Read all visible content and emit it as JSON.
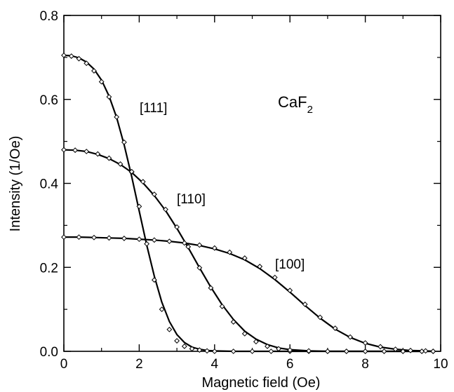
{
  "chart_data": {
    "type": "scatter",
    "title": "",
    "xlabel": "Magnetic field (Oe)",
    "ylabel": "Intensity (1/Oe)",
    "xlim": [
      0,
      10
    ],
    "ylim": [
      0,
      0.8
    ],
    "xticks": [
      0,
      2,
      4,
      6,
      8,
      10
    ],
    "yticks": [
      0.0,
      0.2,
      0.4,
      0.6,
      0.8
    ],
    "xtick_labels": [
      "0",
      "2",
      "4",
      "6",
      "8",
      "10"
    ],
    "ytick_labels": [
      "0.0",
      "0.2",
      "0.4",
      "0.6",
      "0.8"
    ],
    "grid": false,
    "legend": "none",
    "annotation": {
      "text": "CaF",
      "subscript": "2"
    },
    "series": [
      {
        "name": "[111]",
        "x": [
          0.0,
          0.2,
          0.4,
          0.6,
          0.8,
          1.0,
          1.2,
          1.4,
          1.6,
          1.8,
          2.0,
          2.2,
          2.4,
          2.6,
          2.8,
          3.0,
          3.2,
          3.4,
          3.6,
          3.8,
          4.0,
          4.5,
          5.0,
          5.5,
          6.0,
          6.5,
          7.0,
          7.5,
          8.0,
          8.5,
          9.0,
          9.5,
          9.8
        ],
        "y": [
          0.705,
          0.703,
          0.697,
          0.686,
          0.668,
          0.642,
          0.606,
          0.558,
          0.498,
          0.427,
          0.345,
          0.256,
          0.17,
          0.1,
          0.052,
          0.025,
          0.012,
          0.006,
          0.003,
          0.001,
          0.0,
          0.0,
          0.0,
          0.0,
          0.0,
          0.0,
          0.0,
          0.0,
          0.0,
          0.0,
          0.0,
          0.0,
          0.0
        ],
        "fit": [
          0.705,
          0.704,
          0.699,
          0.689,
          0.672,
          0.646,
          0.608,
          0.557,
          0.492,
          0.416,
          0.334,
          0.253,
          0.179,
          0.117,
          0.071,
          0.04,
          0.021,
          0.01,
          0.005,
          0.002,
          0.001,
          0.0,
          0.0,
          0.0,
          0.0,
          0.0,
          0.0,
          0.0,
          0.0,
          0.0,
          0.0,
          0.0,
          0.0
        ]
      },
      {
        "name": "[110]",
        "x": [
          0.0,
          0.3,
          0.6,
          0.9,
          1.2,
          1.5,
          1.8,
          2.1,
          2.4,
          2.7,
          3.0,
          3.3,
          3.6,
          3.9,
          4.2,
          4.5,
          4.8,
          5.1,
          5.4,
          5.7,
          6.0,
          6.5,
          7.0,
          7.5,
          8.0,
          8.5,
          9.0,
          9.5,
          9.8
        ],
        "y": [
          0.48,
          0.479,
          0.476,
          0.47,
          0.46,
          0.446,
          0.428,
          0.404,
          0.374,
          0.338,
          0.296,
          0.249,
          0.199,
          0.151,
          0.107,
          0.07,
          0.042,
          0.023,
          0.012,
          0.006,
          0.003,
          0.001,
          0.0,
          0.0,
          0.0,
          0.0,
          0.0,
          0.0,
          0.0
        ],
        "fit": [
          0.48,
          0.479,
          0.476,
          0.469,
          0.459,
          0.445,
          0.426,
          0.401,
          0.371,
          0.335,
          0.293,
          0.247,
          0.199,
          0.153,
          0.111,
          0.076,
          0.048,
          0.029,
          0.016,
          0.008,
          0.004,
          0.001,
          0.0,
          0.0,
          0.0,
          0.0,
          0.0,
          0.0,
          0.0
        ]
      },
      {
        "name": "[100]",
        "x": [
          0.0,
          0.4,
          0.8,
          1.2,
          1.6,
          2.0,
          2.4,
          2.8,
          3.2,
          3.6,
          4.0,
          4.4,
          4.8,
          5.2,
          5.6,
          6.0,
          6.4,
          6.8,
          7.2,
          7.6,
          8.0,
          8.4,
          8.8,
          9.2,
          9.6,
          9.8
        ],
        "y": [
          0.272,
          0.272,
          0.271,
          0.27,
          0.269,
          0.267,
          0.265,
          0.262,
          0.258,
          0.253,
          0.246,
          0.236,
          0.222,
          0.202,
          0.176,
          0.145,
          0.112,
          0.081,
          0.055,
          0.034,
          0.02,
          0.011,
          0.005,
          0.002,
          0.001,
          0.0
        ],
        "fit": [
          0.272,
          0.272,
          0.271,
          0.27,
          0.269,
          0.267,
          0.265,
          0.262,
          0.258,
          0.252,
          0.244,
          0.233,
          0.218,
          0.197,
          0.171,
          0.141,
          0.109,
          0.079,
          0.053,
          0.033,
          0.019,
          0.01,
          0.005,
          0.002,
          0.001,
          0.0
        ]
      }
    ]
  }
}
